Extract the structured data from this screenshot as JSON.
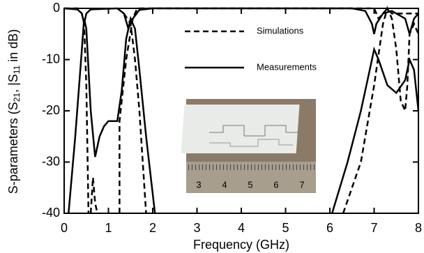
{
  "chart_data": {
    "type": "line",
    "x_label": "Frequency (GHz)",
    "y_label_parts": [
      "S-parameters (S",
      "21",
      ", |S",
      "11",
      " in dB)"
    ],
    "xlim": [
      0,
      8
    ],
    "xticks": [
      0,
      1,
      2,
      3,
      4,
      5,
      6,
      7,
      8
    ],
    "ylim": [
      -40,
      0
    ],
    "yticks": [
      -40,
      -30,
      -20,
      -10,
      0
    ],
    "series": [
      {
        "name": "Simulations",
        "color": "#000000",
        "dash": true,
        "x": [
          0,
          0.3,
          0.4,
          0.45,
          0.5,
          0.55,
          null,
          0.6,
          0.65,
          0.7,
          0.75,
          null,
          1.25,
          1.25,
          1.4,
          1.55,
          1.65,
          2,
          6.5,
          7.0,
          7.1,
          7.2,
          7.3,
          7.4,
          7.6,
          8
        ],
        "values": [
          0,
          0,
          -1,
          -3,
          -15,
          -40,
          null,
          -40,
          -33,
          -38,
          -40,
          null,
          -40,
          -22,
          -10,
          -2,
          0,
          0,
          0,
          0,
          -2,
          -1,
          0,
          -1,
          -1,
          -1
        ]
      },
      {
        "color": "#000000",
        "dash": true,
        "x": [
          1.35,
          1.5,
          1.6,
          1.7,
          1.85,
          null,
          6.3,
          6.7,
          7.0,
          7.2,
          7.3,
          7.4,
          7.5,
          7.6,
          7.7,
          7.75,
          7.8,
          7.9,
          8
        ],
        "values": [
          -1,
          -3,
          -10,
          -20,
          -40,
          null,
          -40,
          -30,
          -15,
          -3,
          0,
          -2,
          -8,
          -18,
          -20,
          -15,
          -5,
          -3,
          -5
        ]
      },
      {
        "name": "Measurements",
        "color": "#000000",
        "dash": false,
        "x": [
          0,
          0.3,
          0.4,
          0.45,
          0.5,
          0.6,
          1.2,
          1.35,
          1.45,
          1.55,
          1.7,
          2,
          6.5,
          6.8,
          6.95,
          7.0,
          7.05,
          7.2,
          7.4,
          7.7,
          7.8,
          7.9,
          8
        ],
        "values": [
          0,
          -0.2,
          -1,
          -3,
          -1,
          -0.2,
          0,
          -1,
          -4,
          -2,
          -0.3,
          0,
          0,
          -0.5,
          -3,
          -5,
          -3,
          -1,
          -0.5,
          -2,
          -5,
          -2,
          -1
        ]
      },
      {
        "color": "#000000",
        "dash": false,
        "x": [
          0.1,
          0.25,
          0.4,
          0.45,
          0.5,
          0.6,
          0.7,
          0.8,
          0.9,
          1.0,
          1.2,
          1.3,
          1.4,
          1.5,
          1.6,
          1.7,
          1.85,
          2.05,
          null,
          6.05,
          6.4,
          6.7,
          6.9,
          7.0,
          7.1,
          7.3,
          7.5,
          7.7,
          7.8,
          7.9,
          8
        ],
        "values": [
          -40,
          -25,
          -8,
          -2,
          -4,
          -20,
          -29,
          -25,
          -23,
          -22,
          -22,
          -16,
          -6,
          -2,
          -4,
          -12,
          -25,
          -40,
          null,
          -40,
          -30,
          -20,
          -12,
          -8,
          -10,
          -15,
          -16.5,
          -14,
          -10,
          -12,
          -20
        ]
      }
    ]
  },
  "inset": {
    "ruler_labels": [
      "3",
      "4",
      "5",
      "6",
      "7"
    ]
  }
}
